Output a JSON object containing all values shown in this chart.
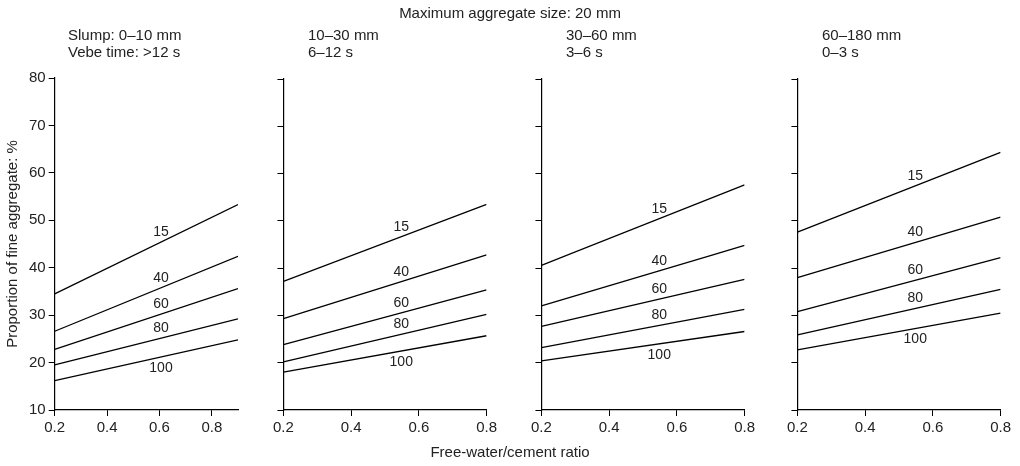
{
  "chart_data": [
    {
      "type": "line",
      "title": "Slump: 0–10 mm",
      "subtitle": "Vebe time: >12 s",
      "annotations": [
        "Maximum aggregate size: 20 mm"
      ],
      "ylabel": "Proportion of fine aggregate: %",
      "xlim": [
        0.2,
        0.9
      ],
      "xticks": [
        0.2,
        0.4,
        0.6,
        0.8
      ],
      "ylim": [
        10,
        80
      ],
      "yticks": [
        10,
        20,
        30,
        40,
        50,
        60,
        70,
        80
      ],
      "series": [
        {
          "name": "15",
          "color": "#000000",
          "x": [
            0.2,
            0.9
          ],
          "values": [
            34.5,
            53.3
          ]
        },
        {
          "name": "40",
          "color": "#000000",
          "x": [
            0.2,
            0.9
          ],
          "values": [
            26.6,
            42.4
          ]
        },
        {
          "name": "60",
          "color": "#000000",
          "x": [
            0.2,
            0.9
          ],
          "values": [
            22.8,
            35.6
          ]
        },
        {
          "name": "80",
          "color": "#000000",
          "x": [
            0.2,
            0.9
          ],
          "values": [
            19.5,
            29.2
          ]
        },
        {
          "name": "100",
          "color": "#000000",
          "x": [
            0.2,
            0.9
          ],
          "values": [
            16.2,
            24.8
          ]
        }
      ]
    },
    {
      "type": "line",
      "title": "10–30 mm",
      "subtitle": "6–12 s",
      "xlabel": "Free-water/cement ratio",
      "xlim": [
        0.2,
        0.8
      ],
      "xticks": [
        0.2,
        0.4,
        0.6,
        0.8
      ],
      "ylim": [
        10,
        80
      ],
      "yticks": [
        10,
        20,
        30,
        40,
        50,
        60,
        70,
        80
      ],
      "tick_labels": "x",
      "series": [
        {
          "name": "15",
          "color": "#000000",
          "x": [
            0.2,
            0.8
          ],
          "values": [
            37.2,
            53.5
          ]
        },
        {
          "name": "40",
          "color": "#000000",
          "x": [
            0.2,
            0.8
          ],
          "values": [
            29.3,
            42.8
          ]
        },
        {
          "name": "60",
          "color": "#000000",
          "x": [
            0.2,
            0.8
          ],
          "values": [
            23.8,
            35.4
          ]
        },
        {
          "name": "80",
          "color": "#000000",
          "x": [
            0.2,
            0.8
          ],
          "values": [
            20.2,
            30.2
          ]
        },
        {
          "name": "100",
          "color": "#000000",
          "x": [
            0.2,
            0.8
          ],
          "values": [
            18.0,
            25.7
          ]
        }
      ]
    },
    {
      "type": "line",
      "title": "30–60 mm",
      "subtitle": "3–6 s",
      "xlim": [
        0.2,
        0.8
      ],
      "xticks": [
        0.2,
        0.4,
        0.6,
        0.8
      ],
      "ylim": [
        10,
        80
      ],
      "yticks": [
        10,
        20,
        30,
        40,
        50,
        60,
        70,
        80
      ],
      "tick_labels": "x",
      "series": [
        {
          "name": "15",
          "color": "#000000",
          "x": [
            0.2,
            0.8
          ],
          "values": [
            40.6,
            57.6
          ]
        },
        {
          "name": "40",
          "color": "#000000",
          "x": [
            0.2,
            0.8
          ],
          "values": [
            32.0,
            44.8
          ]
        },
        {
          "name": "60",
          "color": "#000000",
          "x": [
            0.2,
            0.8
          ],
          "values": [
            27.7,
            37.6
          ]
        },
        {
          "name": "80",
          "color": "#000000",
          "x": [
            0.2,
            0.8
          ],
          "values": [
            23.2,
            31.3
          ]
        },
        {
          "name": "100",
          "color": "#000000",
          "x": [
            0.2,
            0.8
          ],
          "values": [
            20.4,
            26.6
          ]
        }
      ]
    },
    {
      "type": "line",
      "title": "60–180 mm",
      "subtitle": "0–3 s",
      "xlim": [
        0.2,
        0.8
      ],
      "xticks": [
        0.2,
        0.4,
        0.6,
        0.8
      ],
      "ylim": [
        10,
        80
      ],
      "yticks": [
        10,
        20,
        30,
        40,
        50,
        60,
        70,
        80
      ],
      "tick_labels": "x",
      "series": [
        {
          "name": "15",
          "color": "#000000",
          "x": [
            0.2,
            0.8
          ],
          "values": [
            47.6,
            64.5
          ]
        },
        {
          "name": "40",
          "color": "#000000",
          "x": [
            0.2,
            0.8
          ],
          "values": [
            38.0,
            50.8
          ]
        },
        {
          "name": "60",
          "color": "#000000",
          "x": [
            0.2,
            0.8
          ],
          "values": [
            30.8,
            42.2
          ]
        },
        {
          "name": "80",
          "color": "#000000",
          "x": [
            0.2,
            0.8
          ],
          "values": [
            25.9,
            35.5
          ]
        },
        {
          "name": "100",
          "color": "#000000",
          "x": [
            0.2,
            0.8
          ],
          "values": [
            22.7,
            30.5
          ]
        }
      ]
    }
  ]
}
